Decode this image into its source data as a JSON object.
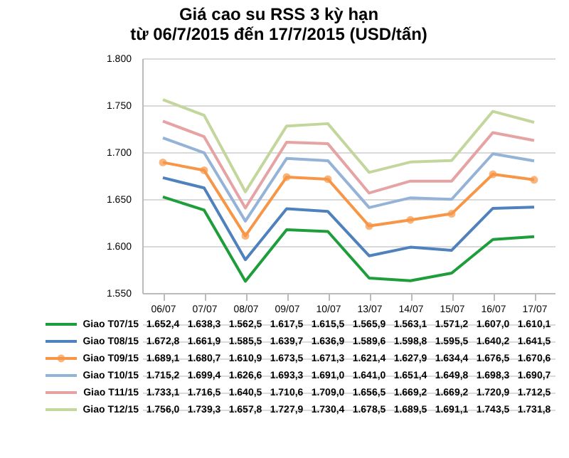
{
  "chart_data": {
    "type": "line",
    "title": "Giá cao su RSS 3 kỳ hạn\ntừ 06/7/2015 đến 17/7/2015 (USD/tấn)",
    "categories": [
      "06/07",
      "07/07",
      "08/07",
      "09/07",
      "10/07",
      "13/07",
      "14/07",
      "15/07",
      "16/07",
      "17/07"
    ],
    "ylim": [
      1550,
      1800
    ],
    "yticks": [
      {
        "value": 1550,
        "label": "1.550"
      },
      {
        "value": 1600,
        "label": "1.600"
      },
      {
        "value": 1650,
        "label": "1.650"
      },
      {
        "value": 1700,
        "label": "1.700"
      },
      {
        "value": 1750,
        "label": "1.750"
      },
      {
        "value": 1800,
        "label": "1.800"
      }
    ],
    "grid": "y",
    "legend": "bottom",
    "line_style": "solid",
    "series": [
      {
        "name": "Giao T07/15",
        "color": "#1e9e3a",
        "values": [
          1652.4,
          1638.3,
          1562.5,
          1617.5,
          1615.5,
          1565.9,
          1563.1,
          1571.2,
          1607.0,
          1610.1
        ],
        "value_labels": [
          "1.652,4",
          "1.638,3",
          "1.562,5",
          "1.617,5",
          "1.615,5",
          "1.565,9",
          "1.563,1",
          "1.571,2",
          "1.607,0",
          "1.610,1"
        ]
      },
      {
        "name": "Giao T08/15",
        "color": "#4f81bd",
        "values": [
          1672.8,
          1661.9,
          1585.5,
          1639.7,
          1636.9,
          1589.6,
          1598.8,
          1595.5,
          1640.2,
          1641.5
        ],
        "value_labels": [
          "1.672,8",
          "1.661,9",
          "1.585,5",
          "1.639,7",
          "1.636,9",
          "1.589,6",
          "1.598,8",
          "1.595,5",
          "1.640,2",
          "1.641,5"
        ]
      },
      {
        "name": "Giao T09/15",
        "color": "#f79646",
        "marker": "circle",
        "values": [
          1689.1,
          1680.7,
          1610.9,
          1673.5,
          1671.3,
          1621.4,
          1627.9,
          1634.4,
          1676.5,
          1670.6
        ],
        "value_labels": [
          "1.689,1",
          "1.680,7",
          "1.610,9",
          "1.673,5",
          "1.671,3",
          "1.621,4",
          "1.627,9",
          "1.634,4",
          "1.676,5",
          "1.670,6"
        ]
      },
      {
        "name": "Giao T10/15",
        "color": "#95b3d7",
        "values": [
          1715.2,
          1699.4,
          1626.6,
          1693.3,
          1691.0,
          1641.0,
          1651.4,
          1649.8,
          1698.3,
          1690.7
        ],
        "value_labels": [
          "1.715,2",
          "1.699,4",
          "1.626,6",
          "1.693,3",
          "1.691,0",
          "1.641,0",
          "1.651,4",
          "1.649,8",
          "1.698,3",
          "1.690,7"
        ]
      },
      {
        "name": "Giao T11/15",
        "color": "#e6a3a3",
        "values": [
          1733.1,
          1716.5,
          1640.5,
          1710.6,
          1709.0,
          1656.5,
          1669.2,
          1669.2,
          1720.9,
          1712.5
        ],
        "value_labels": [
          "1.733,1",
          "1.716,5",
          "1.640,5",
          "1.710,6",
          "1.709,0",
          "1.656,5",
          "1.669,2",
          "1.669,2",
          "1.720,9",
          "1.712,5"
        ]
      },
      {
        "name": "Giao T12/15",
        "color": "#c3d69b",
        "values": [
          1756.0,
          1739.3,
          1657.8,
          1727.9,
          1730.4,
          1678.5,
          1689.5,
          1691.1,
          1743.5,
          1731.8
        ],
        "value_labels": [
          "1.756,0",
          "1.739,3",
          "1.657,8",
          "1.727,9",
          "1.730,4",
          "1.678,5",
          "1.689,5",
          "1.691,1",
          "1.743,5",
          "1.731,8"
        ]
      }
    ]
  }
}
